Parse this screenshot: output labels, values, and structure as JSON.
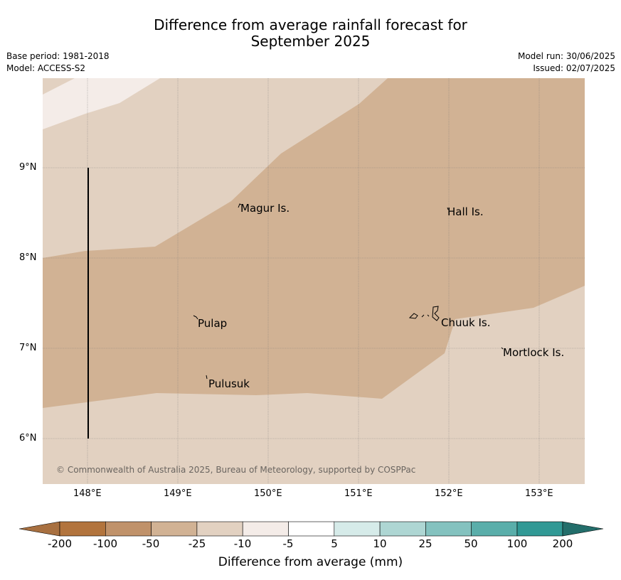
{
  "title": {
    "line1": "Difference from average rainfall forecast for",
    "line2": "September 2025"
  },
  "meta": {
    "base_period": "Base period: 1981-2018",
    "model": "Model: ACCESS-S2",
    "model_run": "Model run: 30/06/2025",
    "issued": "Issued: 02/07/2025"
  },
  "map": {
    "x_ticks": [
      "148°E",
      "149°E",
      "150°E",
      "151°E",
      "152°E",
      "153°E"
    ],
    "y_ticks": [
      "9°N",
      "8°N",
      "7°N",
      "6°N"
    ],
    "places": [
      "Magur Is.",
      "Hall Is.",
      "Pulap",
      "Chuuk Is.",
      "Mortlock Is.",
      "Pulusuk"
    ],
    "copyright": "© Commonwealth of Australia 2025, Bureau of Meteorology, supported by COSPPac"
  },
  "colors": {
    "band_-25_-10": "#e2d1c1",
    "band_-50_-25": "#d1b294",
    "band_-10_-5": "#f4ece8"
  },
  "colorbar": {
    "labels": [
      "-200",
      "-100",
      "-50",
      "-25",
      "-10",
      "-5",
      "5",
      "10",
      "25",
      "50",
      "100",
      "200"
    ],
    "colors": [
      "#a87040",
      "#b2743d",
      "#c0926a",
      "#d1b294",
      "#e2d1c1",
      "#f4ece8",
      "#ffffff",
      "#d6ebe9",
      "#aed6d3",
      "#84c2bf",
      "#5aaeaa",
      "#319995",
      "#236e6b"
    ],
    "title": "Difference from average (mm)"
  }
}
